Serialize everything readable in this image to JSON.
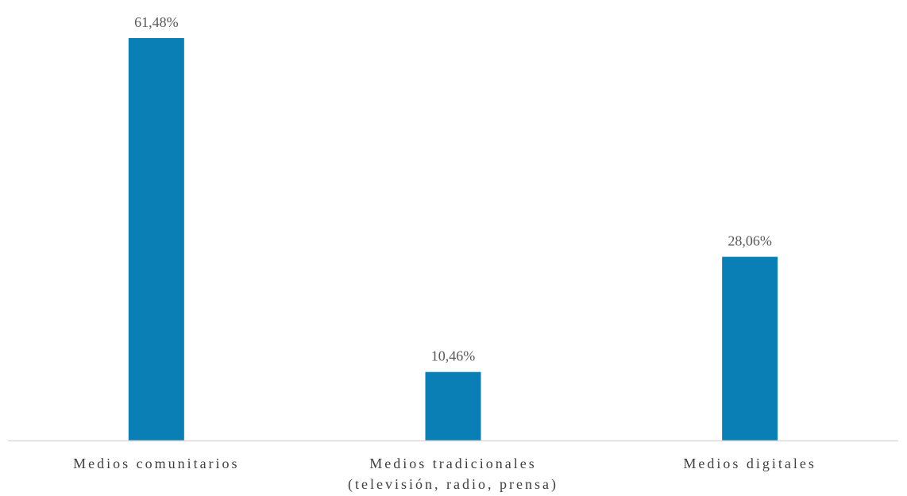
{
  "chart_data": {
    "type": "bar",
    "categories": [
      [
        "Medios comunitarios"
      ],
      [
        "Medios tradicionales",
        "(televisión, radio, prensa)"
      ],
      [
        "Medios digitales"
      ]
    ],
    "values": [
      61.48,
      10.46,
      28.06
    ],
    "value_labels": [
      "61,48%",
      "10,46%",
      "28,06%"
    ],
    "ylim": [
      0,
      61.48
    ],
    "grid": false,
    "legend": "none",
    "bar_color": "#0A7FB5",
    "axis_color": "#D9D9D9"
  }
}
